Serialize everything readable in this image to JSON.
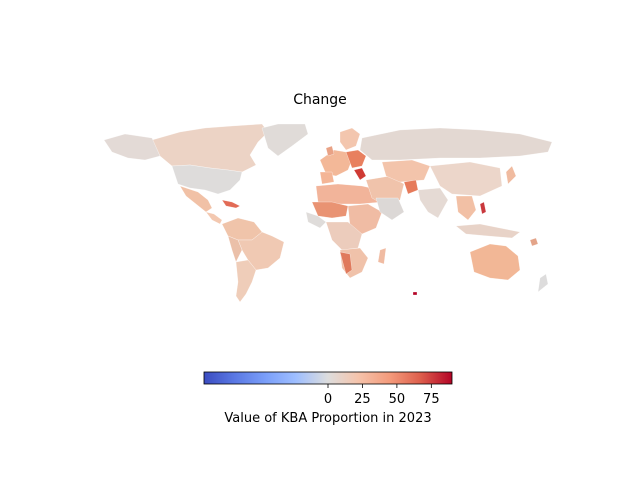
{
  "figure": {
    "title": "Change"
  },
  "colorbar": {
    "label": "Value of KBA Proportion in 2023",
    "colormap": "coolwarm",
    "vmin": -90,
    "vmax": 90,
    "ticks": [
      {
        "value": 0,
        "label": "0"
      },
      {
        "value": 25,
        "label": "25"
      },
      {
        "value": 50,
        "label": "50"
      },
      {
        "value": 75,
        "label": "75"
      }
    ],
    "colors": {
      "low": "#3b4cc0",
      "mid": "#dddddd",
      "high": "#b40426"
    }
  },
  "map": {
    "projection": "equirectangular",
    "missing_value_color": "#dddddd"
  }
}
